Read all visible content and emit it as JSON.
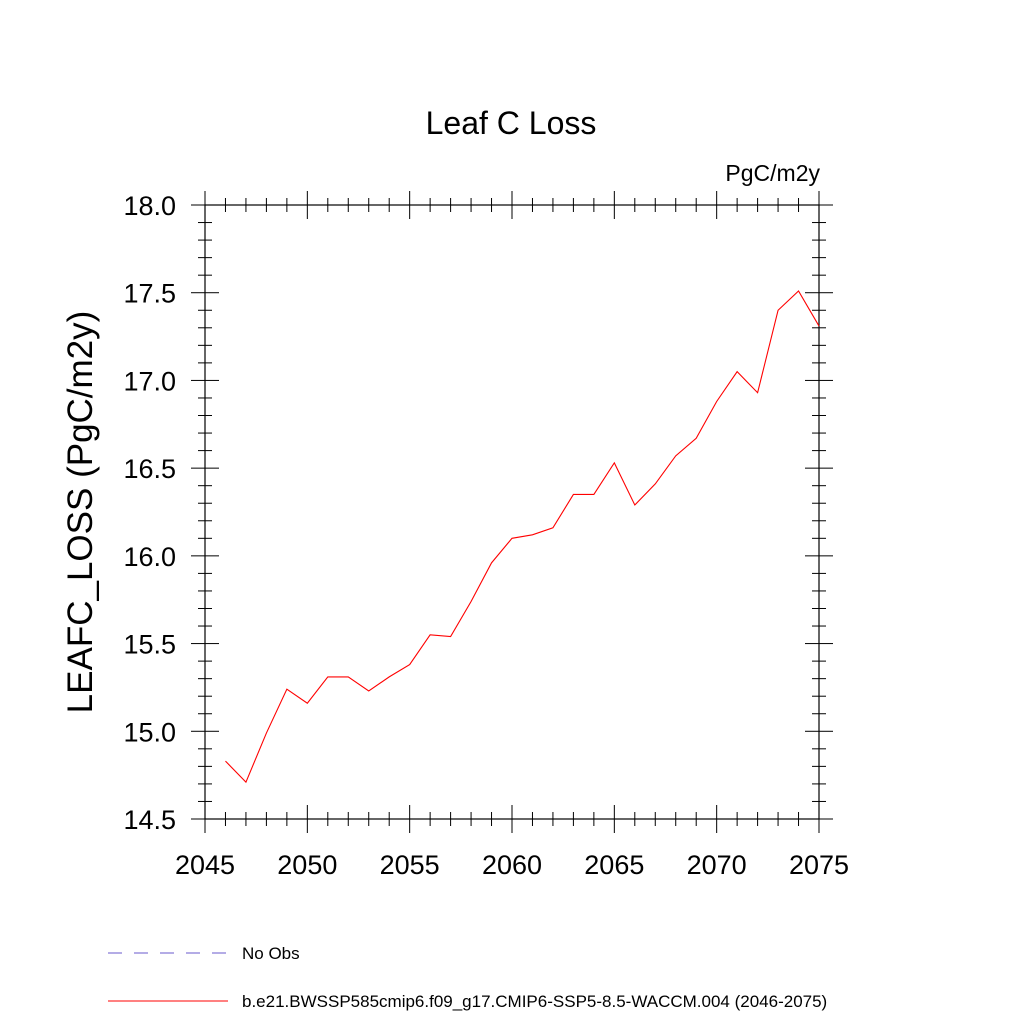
{
  "chart_data": {
    "type": "line",
    "title": "Leaf C Loss",
    "units_label": "PgC/m2y",
    "xlabel": "",
    "ylabel": "LEAFC_LOSS  (PgC/m2y)",
    "xlim": [
      2045,
      2075
    ],
    "ylim": [
      14.5,
      18.0
    ],
    "xticks": [
      2045,
      2050,
      2055,
      2060,
      2065,
      2070,
      2075
    ],
    "xtick_labels": [
      "2045",
      "2050",
      "2055",
      "2060",
      "2065",
      "2070",
      "2075"
    ],
    "yticks": [
      14.5,
      15.0,
      15.5,
      16.0,
      16.5,
      17.0,
      17.5,
      18.0
    ],
    "ytick_labels": [
      "14.5",
      "15.0",
      "15.5",
      "16.0",
      "16.5",
      "17.0",
      "17.5",
      "18.0"
    ],
    "x_minor_step": 1,
    "y_minor_step": 0.1,
    "grid": false,
    "series": [
      {
        "name": "b.e21.BWSSP585cmip6.f09_g17.CMIP6-SSP5-8.5-WACCM.004 (2046-2075)",
        "color": "#ff0000",
        "style": "solid",
        "x": [
          2046,
          2047,
          2048,
          2049,
          2050,
          2051,
          2052,
          2053,
          2054,
          2055,
          2056,
          2057,
          2058,
          2059,
          2060,
          2061,
          2062,
          2063,
          2064,
          2065,
          2066,
          2067,
          2068,
          2069,
          2070,
          2071,
          2072,
          2073,
          2074,
          2075
        ],
        "values": [
          14.83,
          14.71,
          14.99,
          15.24,
          15.16,
          15.31,
          15.31,
          15.23,
          15.31,
          15.38,
          15.55,
          15.54,
          15.74,
          15.96,
          16.1,
          16.12,
          16.16,
          16.35,
          16.35,
          16.53,
          16.29,
          16.41,
          16.57,
          16.67,
          16.88,
          17.05,
          16.93,
          17.4,
          17.51,
          17.31
        ]
      }
    ],
    "legend": [
      {
        "label": "No Obs",
        "color": "#6a5acd",
        "style": "dashed"
      },
      {
        "label": "b.e21.BWSSP585cmip6.f09_g17.CMIP6-SSP5-8.5-WACCM.004 (2046-2075)",
        "color": "#ff0000",
        "style": "solid"
      }
    ],
    "legend_position": "bottom-left"
  }
}
